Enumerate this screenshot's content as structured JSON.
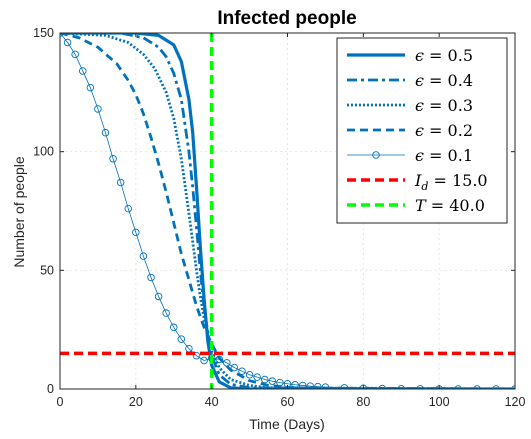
{
  "chart_data": {
    "type": "line",
    "title": "Infected people",
    "xlabel": "Time (Days)",
    "ylabel": "Number of people",
    "xlim": [
      0,
      120
    ],
    "ylim": [
      0,
      150
    ],
    "xticks": [
      "0",
      "20",
      "40",
      "60",
      "80",
      "100",
      "120"
    ],
    "yticks": [
      "0",
      "50",
      "100",
      "150"
    ],
    "grid": true,
    "legend_position": "top-right",
    "colors": {
      "series": "#0072BD",
      "threshold": "#FF0000",
      "time": "#00FF00"
    },
    "series": [
      {
        "eps": "0.5",
        "style": "solid-thick",
        "x": [
          0,
          20,
          26,
          30,
          32,
          34,
          35,
          36,
          37,
          38,
          39,
          40,
          42,
          45,
          50,
          120
        ],
        "y": [
          150,
          150,
          149,
          145,
          138,
          122,
          108,
          85,
          60,
          38,
          20,
          10,
          3,
          0.5,
          0,
          0
        ]
      },
      {
        "eps": "0.4",
        "style": "dashdot",
        "x": [
          0,
          16,
          22,
          26,
          28,
          30,
          32,
          34,
          35,
          36,
          37,
          38,
          40,
          42,
          45,
          50,
          120
        ],
        "y": [
          150,
          150,
          148,
          144,
          140,
          133,
          122,
          100,
          85,
          68,
          50,
          34,
          14,
          6,
          2,
          0.5,
          0
        ]
      },
      {
        "eps": "0.3",
        "style": "dotted",
        "x": [
          0,
          12,
          18,
          22,
          25,
          28,
          30,
          32,
          34,
          35,
          36,
          37,
          38,
          40,
          42,
          45,
          50,
          55,
          120
        ],
        "y": [
          150,
          149,
          146,
          141,
          135,
          125,
          114,
          97,
          74,
          62,
          50,
          39,
          30,
          16,
          9,
          4,
          1.5,
          0.5,
          0
        ]
      },
      {
        "eps": "0.2",
        "style": "dashed",
        "x": [
          0,
          5,
          10,
          15,
          18,
          20,
          22,
          24,
          26,
          28,
          30,
          32,
          34,
          36,
          38,
          40,
          42,
          45,
          50,
          55,
          60,
          70,
          120
        ],
        "y": [
          150,
          148,
          144,
          137,
          130,
          124,
          116,
          106,
          95,
          83,
          70,
          57,
          46,
          35,
          26,
          19,
          13,
          8,
          3.5,
          1.5,
          0.7,
          0.2,
          0
        ]
      },
      {
        "eps": "0.1",
        "style": "marker-circle",
        "x": [
          0,
          2,
          4,
          6,
          8,
          10,
          12,
          14,
          16,
          18,
          20,
          22,
          24,
          26,
          28,
          30,
          32,
          34,
          36,
          38,
          40,
          42,
          44,
          46,
          48,
          50,
          52,
          54,
          56,
          58,
          60,
          62,
          64,
          66,
          68,
          70,
          75,
          80,
          85,
          90,
          95,
          100,
          105,
          110,
          115,
          120
        ],
        "y": [
          150,
          146,
          141,
          134,
          127,
          118,
          108,
          97,
          87,
          76,
          66,
          56,
          47,
          39,
          32,
          26,
          21,
          17,
          14,
          12,
          13,
          12.5,
          11,
          9,
          7.5,
          6,
          5,
          4,
          3.3,
          2.7,
          2.2,
          1.8,
          1.5,
          1.2,
          1,
          0.8,
          0.5,
          0.3,
          0.2,
          0.1,
          0.05,
          0,
          0,
          0,
          0,
          0
        ]
      }
    ],
    "threshold": {
      "name": "I_d",
      "value": "15.0",
      "y": 15
    },
    "vertical": {
      "name": "T",
      "value": "40.0",
      "x": 40
    }
  }
}
